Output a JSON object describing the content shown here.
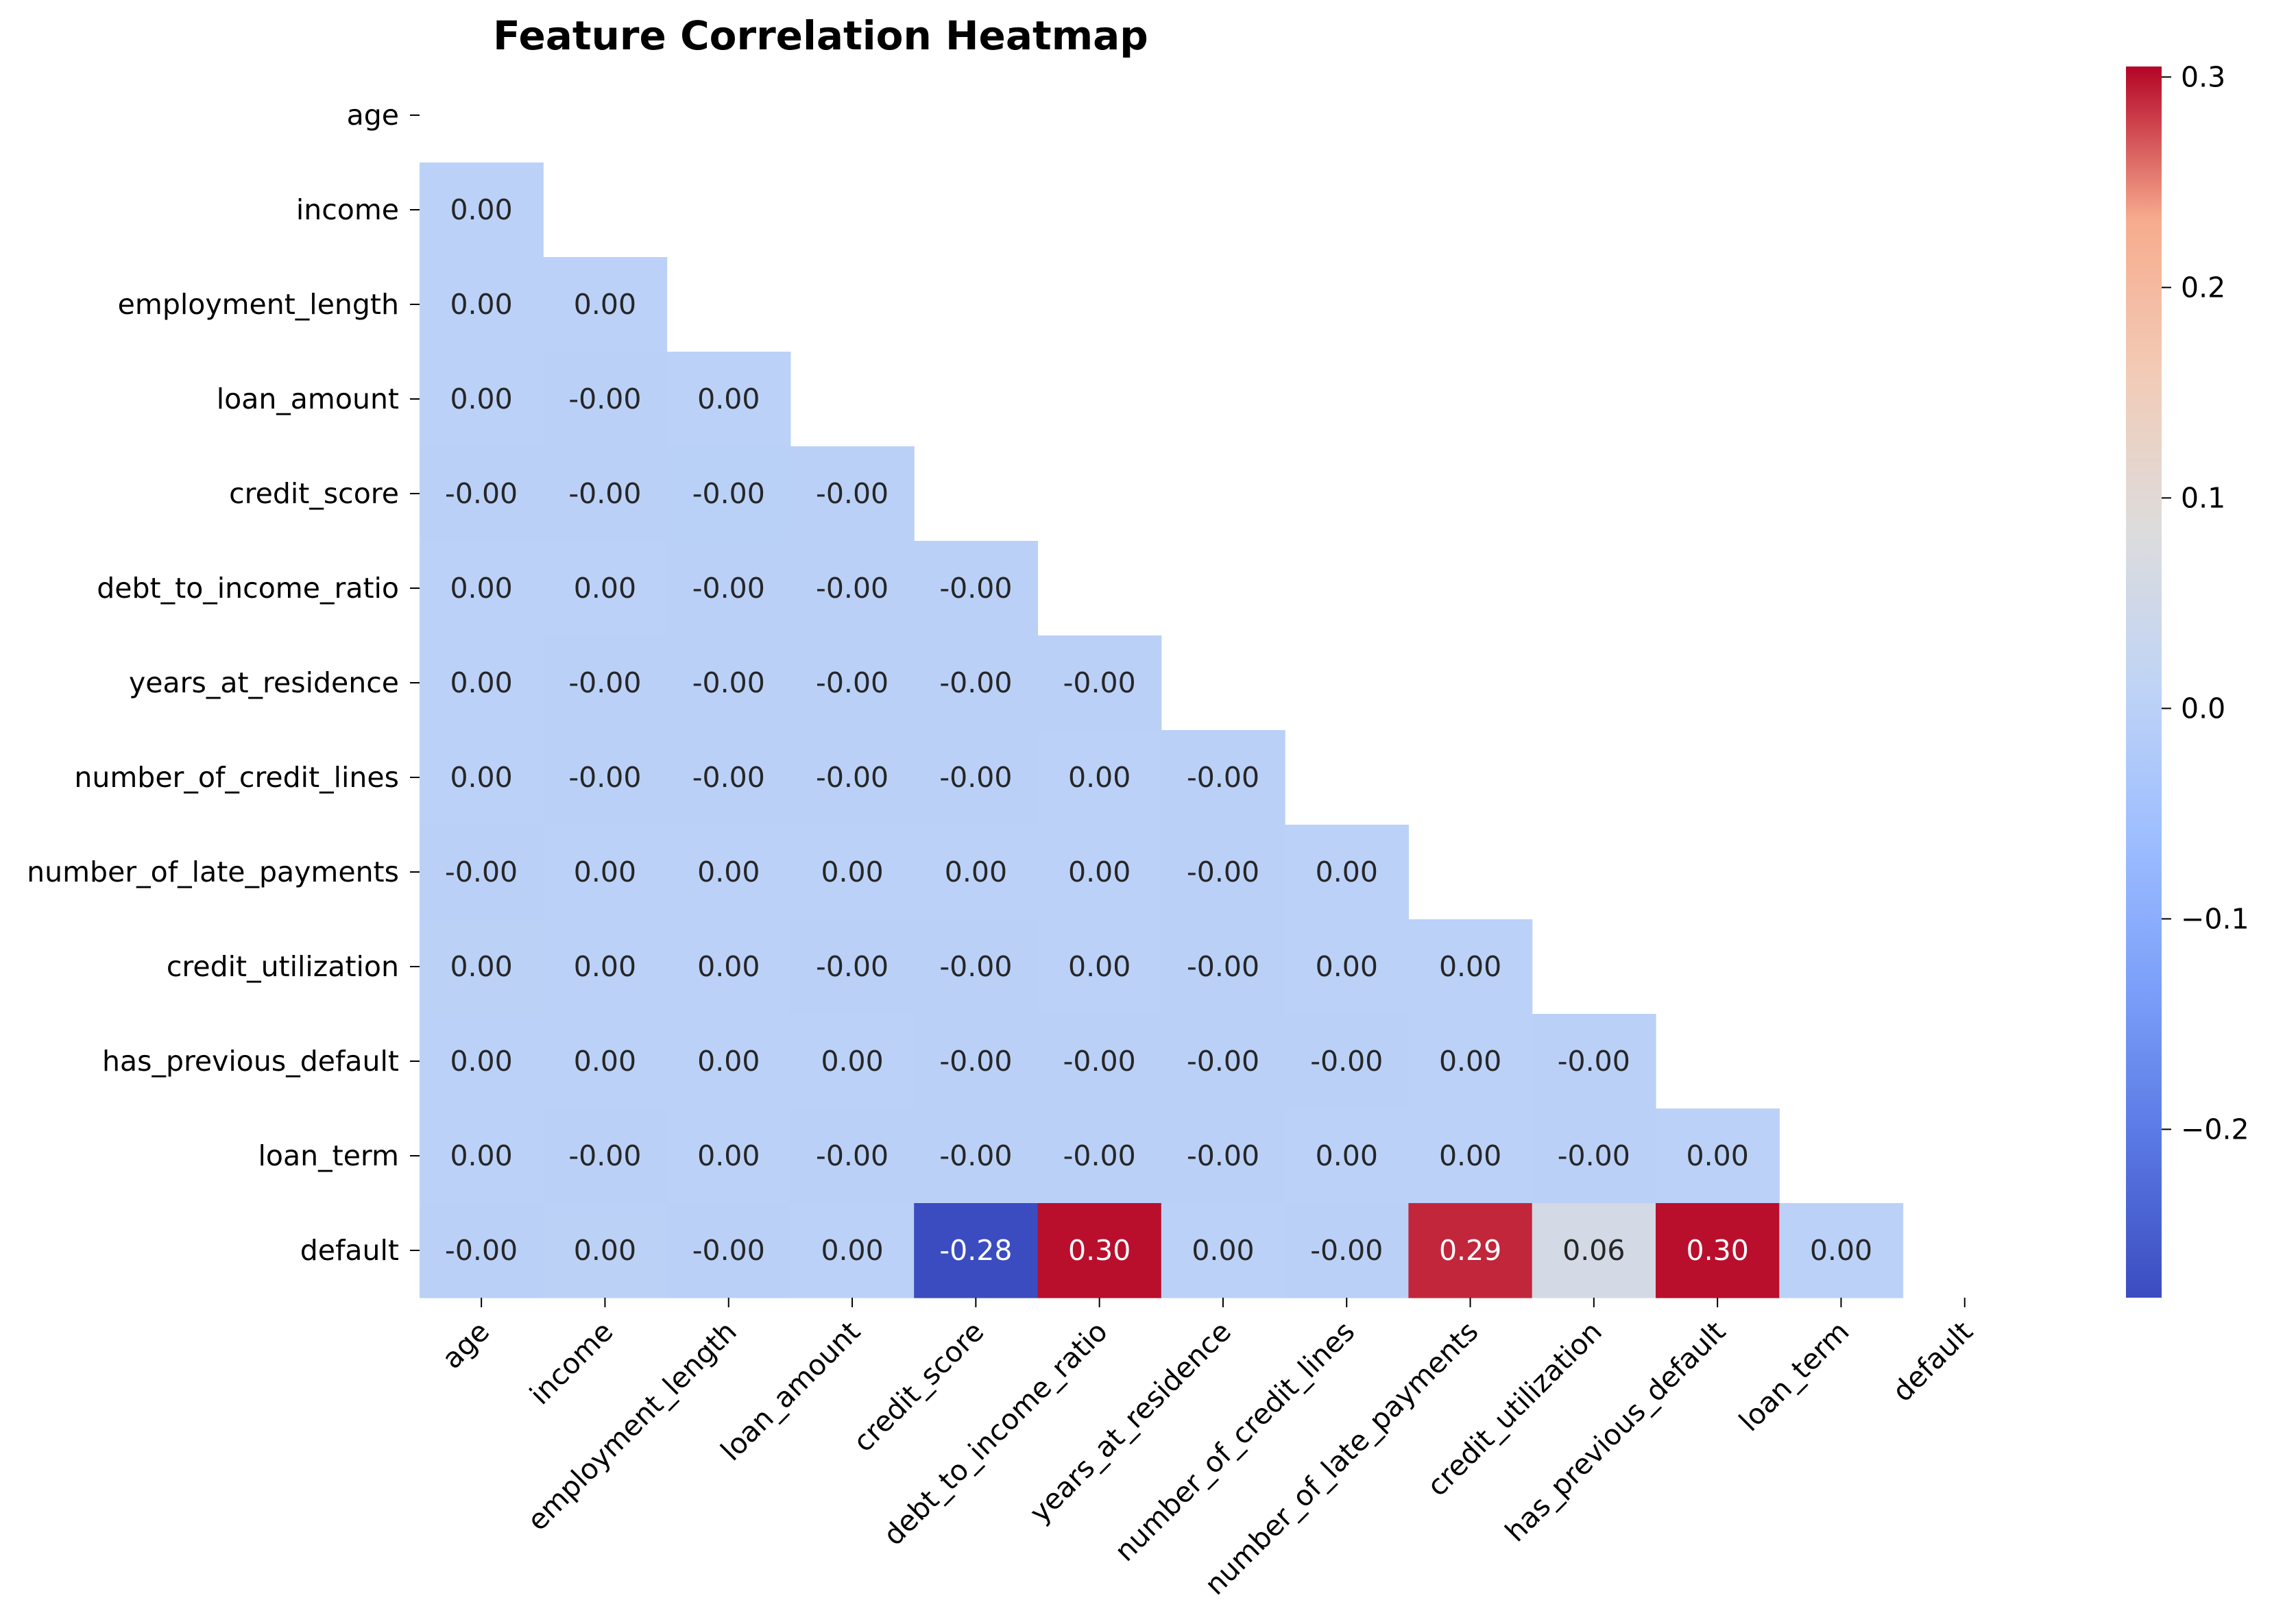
{
  "chart_data": {
    "type": "heatmap",
    "title": "Feature Correlation Heatmap",
    "xlabel": "",
    "ylabel": "",
    "mask": "upper-triangle including diagonal",
    "colormap": "coolwarm",
    "color_range": [
      -0.28,
      0.305
    ],
    "colorbar_ticks": [
      {
        "value": 0.3,
        "label": "0.3"
      },
      {
        "value": 0.2,
        "label": "0.2"
      },
      {
        "value": 0.1,
        "label": "0.1"
      },
      {
        "value": 0.0,
        "label": "0.0"
      },
      {
        "value": -0.1,
        "label": "−0.1"
      },
      {
        "value": -0.2,
        "label": "−0.2"
      }
    ],
    "variables": [
      "age",
      "income",
      "employment_length",
      "loan_amount",
      "credit_score",
      "debt_to_income_ratio",
      "years_at_residence",
      "number_of_credit_lines",
      "number_of_late_payments",
      "credit_utilization",
      "has_previous_default",
      "loan_term",
      "default"
    ],
    "rows": [
      {
        "name": "age",
        "values": [],
        "labels": []
      },
      {
        "name": "income",
        "values": [
          0.001
        ],
        "labels": [
          "0.00"
        ]
      },
      {
        "name": "employment_length",
        "values": [
          0.001,
          0.001
        ],
        "labels": [
          "0.00",
          "0.00"
        ]
      },
      {
        "name": "loan_amount",
        "values": [
          0.001,
          -0.001,
          0.001
        ],
        "labels": [
          "0.00",
          "-0.00",
          "0.00"
        ]
      },
      {
        "name": "credit_score",
        "values": [
          -0.001,
          -0.001,
          -0.002,
          -0.001
        ],
        "labels": [
          "-0.00",
          "-0.00",
          "-0.00",
          "-0.00"
        ]
      },
      {
        "name": "debt_to_income_ratio",
        "values": [
          0.001,
          0.001,
          -0.001,
          -0.001,
          -0.001
        ],
        "labels": [
          "0.00",
          "0.00",
          "-0.00",
          "-0.00",
          "-0.00"
        ]
      },
      {
        "name": "years_at_residence",
        "values": [
          0.001,
          -0.001,
          -0.001,
          -0.001,
          -0.001,
          -0.001
        ],
        "labels": [
          "0.00",
          "-0.00",
          "-0.00",
          "-0.00",
          "-0.00",
          "-0.00"
        ]
      },
      {
        "name": "number_of_credit_lines",
        "values": [
          0.001,
          -0.001,
          -0.001,
          -0.001,
          -0.001,
          0.001,
          -0.001
        ],
        "labels": [
          "0.00",
          "-0.00",
          "-0.00",
          "-0.00",
          "-0.00",
          "0.00",
          "-0.00"
        ]
      },
      {
        "name": "number_of_late_payments",
        "values": [
          -0.001,
          0.001,
          0.001,
          0.001,
          0.001,
          0.001,
          -0.001,
          0.001
        ],
        "labels": [
          "-0.00",
          "0.00",
          "0.00",
          "0.00",
          "0.00",
          "0.00",
          "-0.00",
          "0.00"
        ]
      },
      {
        "name": "credit_utilization",
        "values": [
          0.002,
          0.001,
          0.001,
          -0.001,
          -0.001,
          0.001,
          -0.001,
          0.001,
          0.001
        ],
        "labels": [
          "0.00",
          "0.00",
          "0.00",
          "-0.00",
          "-0.00",
          "0.00",
          "-0.00",
          "0.00",
          "0.00"
        ]
      },
      {
        "name": "has_previous_default",
        "values": [
          0.001,
          0.001,
          0.001,
          0.001,
          -0.001,
          -0.001,
          -0.001,
          -0.001,
          0.001,
          -0.001
        ],
        "labels": [
          "0.00",
          "0.00",
          "0.00",
          "0.00",
          "-0.00",
          "-0.00",
          "-0.00",
          "-0.00",
          "0.00",
          "-0.00"
        ]
      },
      {
        "name": "loan_term",
        "values": [
          0.001,
          -0.001,
          0.001,
          -0.001,
          -0.001,
          -0.001,
          -0.001,
          0.001,
          0.001,
          -0.001,
          0.001
        ],
        "labels": [
          "0.00",
          "-0.00",
          "0.00",
          "-0.00",
          "-0.00",
          "-0.00",
          "-0.00",
          "0.00",
          "0.00",
          "-0.00",
          "0.00"
        ]
      },
      {
        "name": "default",
        "values": [
          -0.001,
          0.003,
          -0.001,
          0.001,
          -0.28,
          0.3,
          0.001,
          -0.001,
          0.29,
          0.06,
          0.3,
          0.001
        ],
        "labels": [
          "-0.00",
          "0.00",
          "-0.00",
          "0.00",
          "-0.28",
          "0.30",
          "0.00",
          "-0.00",
          "0.29",
          "0.06",
          "0.30",
          "0.00"
        ]
      }
    ]
  }
}
